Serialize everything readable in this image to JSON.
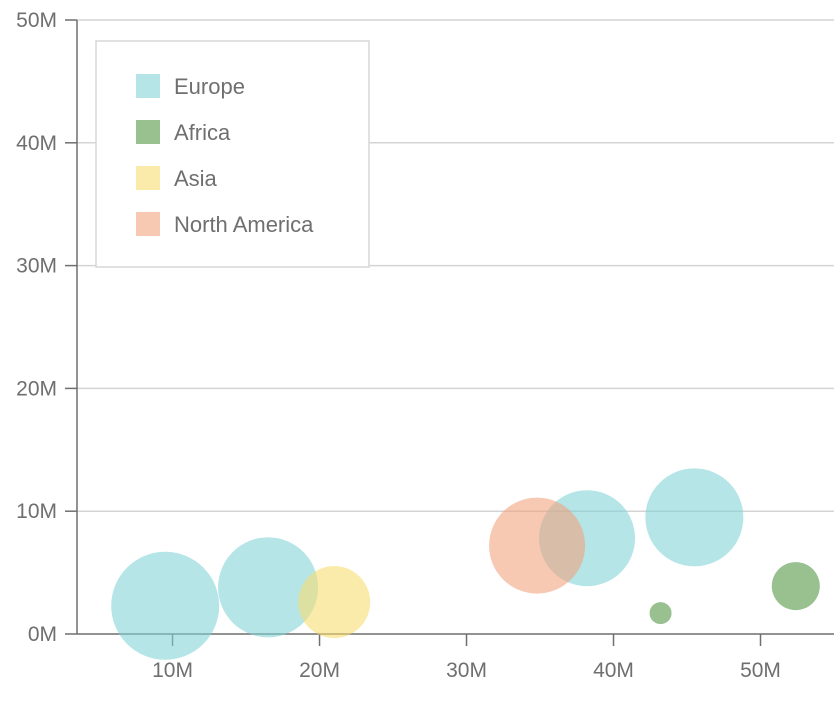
{
  "chart_data": {
    "type": "scatter",
    "title": "",
    "xlabel": "",
    "ylabel": "",
    "xlim": [
      3500000,
      55000000
    ],
    "ylim": [
      0,
      50000000
    ],
    "grid": "horizontal",
    "legend_position": "top-left",
    "x_ticks": [
      {
        "value": 10000000,
        "label": "10M"
      },
      {
        "value": 20000000,
        "label": "20M"
      },
      {
        "value": 30000000,
        "label": "30M"
      },
      {
        "value": 40000000,
        "label": "40M"
      },
      {
        "value": 50000000,
        "label": "50M"
      }
    ],
    "y_ticks": [
      {
        "value": 0,
        "label": "0M"
      },
      {
        "value": 10000000,
        "label": "10M"
      },
      {
        "value": 20000000,
        "label": "20M"
      },
      {
        "value": 30000000,
        "label": "30M"
      },
      {
        "value": 40000000,
        "label": "40M"
      },
      {
        "value": 50000000,
        "label": "50M"
      }
    ],
    "series": [
      {
        "name": "Europe",
        "color": "#7fd3d6",
        "points": [
          {
            "x": 9500000,
            "y": 2300000,
            "size": 54
          },
          {
            "x": 16500000,
            "y": 3800000,
            "size": 50
          },
          {
            "x": 38200000,
            "y": 7800000,
            "size": 48
          },
          {
            "x": 45500000,
            "y": 9500000,
            "size": 49
          }
        ]
      },
      {
        "name": "Africa",
        "color": "#5b9a4a",
        "points": [
          {
            "x": 43200000,
            "y": 1700000,
            "size": 11
          },
          {
            "x": 52400000,
            "y": 3900000,
            "size": 24
          }
        ]
      },
      {
        "name": "Asia",
        "color": "#f8dc6c",
        "points": [
          {
            "x": 21000000,
            "y": 2600000,
            "size": 36
          }
        ]
      },
      {
        "name": "North America",
        "color": "#f2a07b",
        "points": [
          {
            "x": 34800000,
            "y": 7200000,
            "size": 48
          }
        ]
      }
    ]
  }
}
